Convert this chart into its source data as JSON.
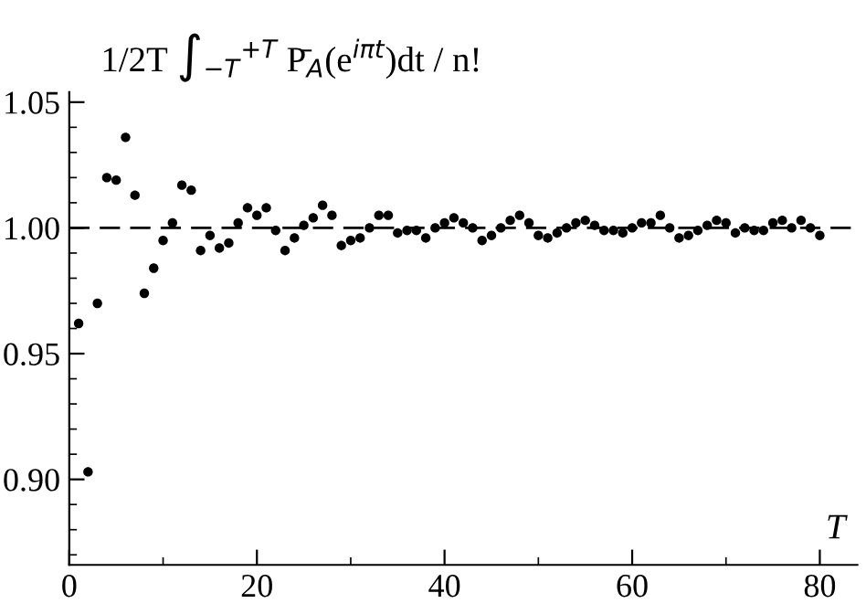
{
  "chart_data": {
    "type": "scatter",
    "xlabel": "T",
    "ylabel": "1/2T ∫$_{−T}$$^{+T}$ P̄$_{A}$(e$^{iπt}$)dt / n!",
    "x": [
      1,
      2,
      3,
      4,
      5,
      6,
      7,
      8,
      9,
      10,
      11,
      12,
      13,
      14,
      15,
      16,
      17,
      18,
      19,
      20,
      21,
      22,
      23,
      24,
      25,
      26,
      27,
      28,
      29,
      30,
      31,
      32,
      33,
      34,
      35,
      36,
      37,
      38,
      39,
      40,
      41,
      42,
      43,
      44,
      45,
      46,
      47,
      48,
      49,
      50,
      51,
      52,
      53,
      54,
      55,
      56,
      57,
      58,
      59,
      60,
      61,
      62,
      63,
      64,
      65,
      66,
      67,
      68,
      69,
      70,
      71,
      72,
      73,
      74,
      75,
      76,
      77,
      78,
      79,
      80
    ],
    "series": [
      {
        "color": "#000000",
        "values": [
          0.962,
          0.903,
          0.97,
          1.02,
          1.019,
          1.036,
          1.013,
          0.974,
          0.984,
          0.995,
          1.002,
          1.017,
          1.015,
          0.991,
          0.997,
          0.992,
          0.994,
          1.002,
          1.008,
          1.005,
          1.008,
          0.999,
          0.991,
          0.996,
          1.001,
          1.004,
          1.009,
          1.005,
          0.993,
          0.995,
          0.996,
          1.0,
          1.005,
          1.005,
          0.998,
          0.999,
          0.999,
          0.996,
          1.0,
          1.002,
          1.004,
          1.002,
          1.0,
          0.995,
          0.997,
          1.0,
          1.003,
          1.005,
          1.002,
          0.997,
          0.996,
          0.998,
          1.0,
          1.002,
          1.003,
          1.001,
          0.999,
          0.999,
          0.998,
          1.0,
          1.002,
          1.002,
          1.005,
          1.0,
          0.996,
          0.997,
          0.999,
          1.001,
          1.003,
          1.002,
          0.998,
          1.0,
          0.999,
          0.999,
          1.002,
          1.003,
          1.0,
          1.003,
          1.0,
          0.997
        ]
      }
    ],
    "marker": "circle",
    "xlim": [
      0,
      84
    ],
    "ylim": [
      0.866,
      1.054
    ],
    "xticks": [
      0,
      {
        "value": 10,
        "label": null
      },
      20,
      {
        "value": 30,
        "label": null
      },
      40,
      {
        "value": 50,
        "label": null
      },
      60,
      {
        "value": 70,
        "label": null
      },
      80
    ],
    "yticks": [
      {
        "value": 0.87,
        "label": null
      },
      {
        "value": 0.88,
        "label": null
      },
      {
        "value": 0.89,
        "label": null
      },
      {
        "value": 0.9,
        "label": "0.90"
      },
      {
        "value": 0.91,
        "label": null
      },
      {
        "value": 0.92,
        "label": null
      },
      {
        "value": 0.93,
        "label": null
      },
      {
        "value": 0.94,
        "label": null
      },
      {
        "value": 0.95,
        "label": "0.95"
      },
      {
        "value": 0.96,
        "label": null
      },
      {
        "value": 0.97,
        "label": null
      },
      {
        "value": 0.98,
        "label": null
      },
      {
        "value": 0.99,
        "label": null
      },
      {
        "value": 1.0,
        "label": "1.00"
      },
      {
        "value": 1.01,
        "label": null
      },
      {
        "value": 1.02,
        "label": null
      },
      {
        "value": 1.03,
        "label": null
      },
      {
        "value": 1.04,
        "label": null
      },
      {
        "value": 1.05,
        "label": "1.05"
      }
    ],
    "ref_lines": [
      {
        "axis": "y",
        "value": 1.0,
        "line_style": "dashed",
        "color": "#000000"
      }
    ],
    "grid": false,
    "legend": false
  }
}
